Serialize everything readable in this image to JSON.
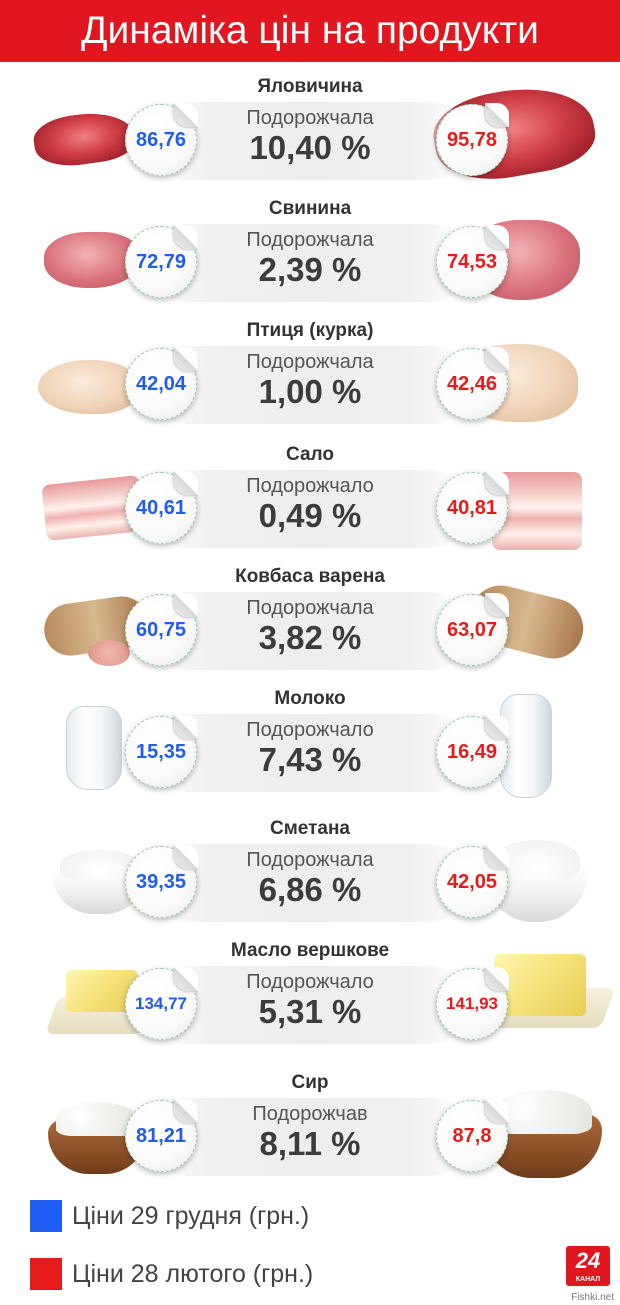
{
  "header": {
    "title": "Динаміка цін на продукти"
  },
  "colors": {
    "header_bg": "#e2161e",
    "old_price": "#1f5cf2",
    "new_price": "#e81b1b"
  },
  "products": [
    {
      "name": "Яловичина",
      "change_label": "Подорожчала",
      "change": "10,40 %",
      "old_price": "86,76",
      "new_price": "95,78",
      "image": "beef"
    },
    {
      "name": "Свинина",
      "change_label": "Подорожчала",
      "change": "2,39 %",
      "old_price": "72,79",
      "new_price": "74,53",
      "image": "pork"
    },
    {
      "name": "Птиця (курка)",
      "change_label": "Подорожчала",
      "change": "1,00 %",
      "old_price": "42,04",
      "new_price": "42,46",
      "image": "chicken"
    },
    {
      "name": "Сало",
      "change_label": "Подорожчало",
      "change": "0,49 %",
      "old_price": "40,61",
      "new_price": "40,81",
      "image": "salo"
    },
    {
      "name": "Ковбаса варена",
      "change_label": "Подорожчала",
      "change": "3,82 %",
      "old_price": "60,75",
      "new_price": "63,07",
      "image": "sausage"
    },
    {
      "name": "Молоко",
      "change_label": "Подорожчало",
      "change": "7,43 %",
      "old_price": "15,35",
      "new_price": "16,49",
      "image": "milk"
    },
    {
      "name": "Сметана",
      "change_label": "Подорожчала",
      "change": "6,86 %",
      "old_price": "39,35",
      "new_price": "42,05",
      "image": "sour-cream"
    },
    {
      "name": "Масло вершкове",
      "change_label": "Подорожчало",
      "change": "5,31 %",
      "old_price": "134,77",
      "new_price": "141,93",
      "image": "butter"
    },
    {
      "name": "Сир",
      "change_label": "Подорожчав",
      "change": "8,11 %",
      "old_price": "81,21",
      "new_price": "87,8",
      "image": "cottage-cheese"
    }
  ],
  "legend": {
    "old": {
      "label": "Ціни 29 грудня (грн.)",
      "color": "#1f5cf2"
    },
    "new": {
      "label": "Ціни 28 лютого (грн.)",
      "color": "#e81b1b"
    }
  },
  "logo": {
    "text": "24",
    "sub": "КАНАЛ"
  },
  "watermark": "Fishki.net"
}
